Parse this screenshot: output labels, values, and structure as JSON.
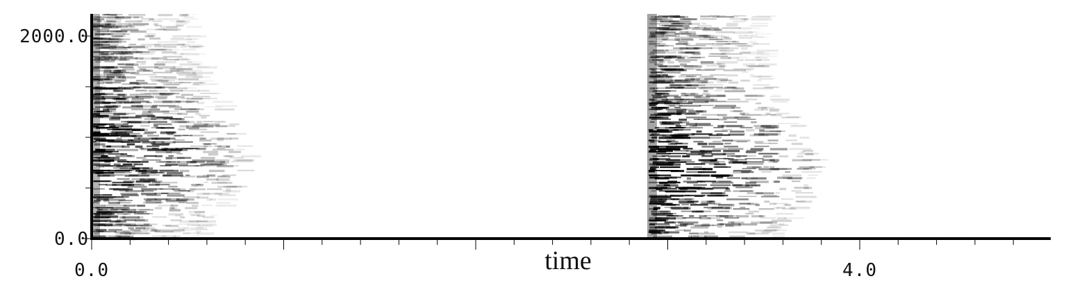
{
  "chart_data": {
    "type": "heatmap",
    "subtype": "spectrogram",
    "title": "",
    "xlabel": "time",
    "ylabel": "",
    "xlim": [
      0.0,
      5.0
    ],
    "ylim": [
      0.0,
      2200.0
    ],
    "x_ticks": [
      {
        "value": 0.0,
        "label": "0.0"
      },
      {
        "value": 4.0,
        "label": "4.0"
      }
    ],
    "y_ticks": [
      {
        "value": 0.0,
        "label": "0.0"
      },
      {
        "value": 2000.0,
        "label": "2000.0"
      }
    ],
    "x_minor_step": 0.2,
    "y_minor_step": 500.0,
    "colormap": "grayscale-inverted",
    "events": [
      {
        "onset": 0.0,
        "decay_end": 0.78,
        "peak_freq": 850.0,
        "intensity": 0.85
      },
      {
        "onset": 2.9,
        "decay_end": 3.75,
        "peak_freq": 720.0,
        "intensity": 1.0
      }
    ],
    "grid": false
  },
  "colors": {
    "background": "#ffffff",
    "axis": "#000000",
    "ink": "#000000"
  }
}
